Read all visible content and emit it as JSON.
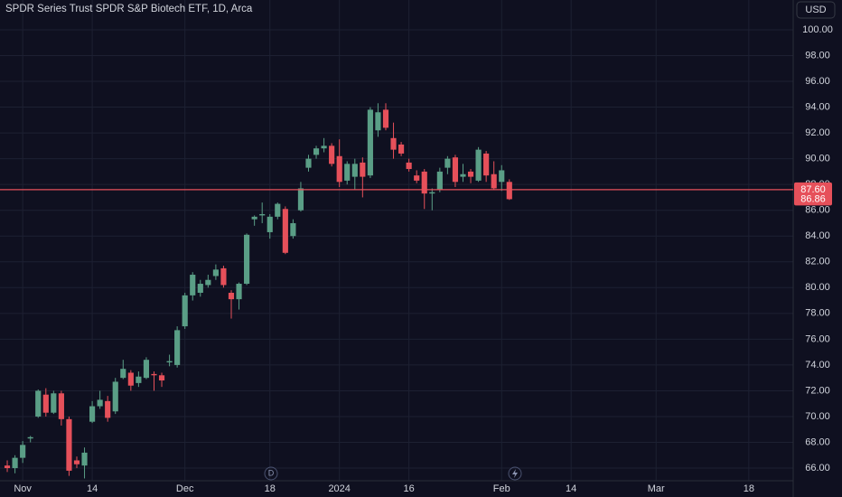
{
  "chart_data": {
    "type": "candlestick",
    "title": "SPDR Series Trust SPDR S&P Biotech ETF, 1D, Arca",
    "currency": "USD",
    "dividend_marker": "D",
    "up_color": "#5a9e86",
    "down_color": "#e6505a",
    "open": [
      66.2,
      66.0,
      66.8,
      68.3,
      70.0,
      71.7,
      70.3,
      71.8,
      69.8,
      66.6,
      66.2,
      69.6,
      70.8,
      71.2,
      70.4,
      73.0,
      73.4,
      72.6,
      73.0,
      73.3,
      73.2,
      74.2,
      74.0,
      77.0,
      79.4,
      79.6,
      80.2,
      80.9,
      81.5,
      79.6,
      79.1,
      80.3,
      85.3,
      85.6,
      84.3,
      85.5,
      86.1,
      84.0,
      86.0,
      89.3,
      90.3,
      90.8,
      91.0,
      90.2,
      88.3,
      88.6,
      89.7,
      88.7,
      92.2,
      93.8,
      91.6,
      91.1,
      89.7,
      88.7,
      89.0,
      87.3,
      87.6,
      89.3,
      90.1,
      88.6,
      89.0,
      88.3,
      90.4,
      88.8,
      88.2,
      88.2
    ],
    "high": [
      66.6,
      67.0,
      68.1,
      68.5,
      72.1,
      72.2,
      72.0,
      72.0,
      70.0,
      66.9,
      67.6,
      71.2,
      72.0,
      71.6,
      73.0,
      74.4,
      73.6,
      73.5,
      74.6,
      73.5,
      73.4,
      74.8,
      77.0,
      79.6,
      81.2,
      80.6,
      81.0,
      81.8,
      81.7,
      79.8,
      80.4,
      84.2,
      85.6,
      86.6,
      85.7,
      86.6,
      86.3,
      85.3,
      88.2,
      90.3,
      91.0,
      91.6,
      91.2,
      91.5,
      89.8,
      90.0,
      90.1,
      94.0,
      94.3,
      94.3,
      92.8,
      91.3,
      90.0,
      89.1,
      89.2,
      87.7,
      89.3,
      90.2,
      90.3,
      89.6,
      89.2,
      90.9,
      90.6,
      89.8,
      89.5,
      88.4
    ],
    "low": [
      65.7,
      65.6,
      66.4,
      68.0,
      69.9,
      70.0,
      70.2,
      69.3,
      65.4,
      66.0,
      65.2,
      69.5,
      70.6,
      69.6,
      70.2,
      72.9,
      72.0,
      72.3,
      72.9,
      72.0,
      72.3,
      73.9,
      73.8,
      76.8,
      79.0,
      79.3,
      80.0,
      80.6,
      80.0,
      77.6,
      78.3,
      80.2,
      84.8,
      85.0,
      83.8,
      85.3,
      82.6,
      83.8,
      85.9,
      89.0,
      90.0,
      90.5,
      89.4,
      87.8,
      88.0,
      87.6,
      87.0,
      88.5,
      91.7,
      92.2,
      90.0,
      90.2,
      89.0,
      88.1,
      86.1,
      86.0,
      87.4,
      88.8,
      87.8,
      88.2,
      88.1,
      88.2,
      88.2,
      87.6,
      87.5,
      86.8
    ],
    "close": [
      66.0,
      66.8,
      67.8,
      68.4,
      72.0,
      70.3,
      71.8,
      69.8,
      65.8,
      66.3,
      67.2,
      70.8,
      71.3,
      69.9,
      72.7,
      73.7,
      72.4,
      73.1,
      74.4,
      73.2,
      72.8,
      74.3,
      76.7,
      79.4,
      81.0,
      80.3,
      80.6,
      81.4,
      80.2,
      79.1,
      80.3,
      84.1,
      85.5,
      85.7,
      85.5,
      86.5,
      82.7,
      85.0,
      87.7,
      90.0,
      90.8,
      91.0,
      89.6,
      88.2,
      89.6,
      89.6,
      88.6,
      93.8,
      93.6,
      92.4,
      90.7,
      90.4,
      89.2,
      88.3,
      87.3,
      87.4,
      89.0,
      90.0,
      88.2,
      88.8,
      88.6,
      90.7,
      88.7,
      87.7,
      89.1,
      86.86
    ],
    "price_line": {
      "value": 87.6,
      "label": "87.60"
    },
    "last_price": {
      "value": 86.86,
      "label": "86.86"
    },
    "xlim": [
      -0.94,
      101.75
    ],
    "xticks": [
      {
        "value": 2,
        "label": "Nov"
      },
      {
        "value": 11,
        "label": "14"
      },
      {
        "value": 23,
        "label": "Dec"
      },
      {
        "value": 34,
        "label": "18"
      },
      {
        "value": 43,
        "label": "2024"
      },
      {
        "value": 52,
        "label": "16"
      },
      {
        "value": 64,
        "label": "Feb"
      },
      {
        "value": 73,
        "label": "14"
      },
      {
        "value": 84,
        "label": "Mar"
      },
      {
        "value": 96,
        "label": "18"
      }
    ],
    "ylim": [
      63.76,
      102.31
    ],
    "yticks": [
      {
        "value": 66,
        "label": "66.00"
      },
      {
        "value": 68,
        "label": "68.00"
      },
      {
        "value": 70,
        "label": "70.00"
      },
      {
        "value": 72,
        "label": "72.00"
      },
      {
        "value": 74,
        "label": "74.00"
      },
      {
        "value": 76,
        "label": "76.00"
      },
      {
        "value": 78,
        "label": "78.00"
      },
      {
        "value": 80,
        "label": "80.00"
      },
      {
        "value": 82,
        "label": "82.00"
      },
      {
        "value": 84,
        "label": "84.00"
      },
      {
        "value": 86,
        "label": "86.00"
      },
      {
        "value": 88,
        "label": "88.00"
      },
      {
        "value": 90,
        "label": "90.00"
      },
      {
        "value": 92,
        "label": "92.00"
      },
      {
        "value": 94,
        "label": "94.00"
      },
      {
        "value": 96,
        "label": "96.00"
      },
      {
        "value": 98,
        "label": "98.00"
      },
      {
        "value": 100,
        "label": "100.00"
      }
    ],
    "grid": true
  }
}
